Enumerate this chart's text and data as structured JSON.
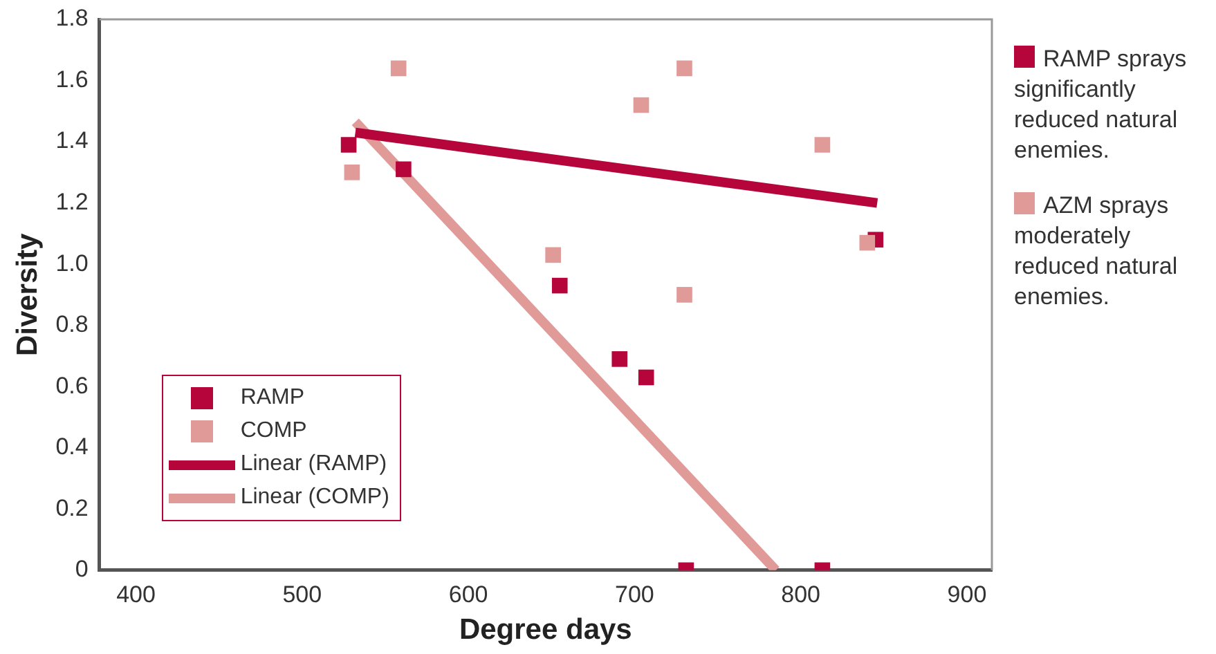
{
  "chart_data": {
    "type": "scatter",
    "xlabel": "Degree days",
    "ylabel": "Diversity",
    "xlim": [
      378,
      915
    ],
    "xticks": [
      400,
      500,
      600,
      700,
      800,
      900
    ],
    "ylim": [
      0,
      1.8
    ],
    "yticks": [
      0,
      0.2,
      0.4,
      0.6,
      0.8,
      {
        "value": 1,
        "label": "1.0"
      },
      1.2,
      1.4,
      1.6,
      1.8
    ],
    "grid": false,
    "legend": "bottom left",
    "line_style": "solid",
    "series": [
      {
        "name": "RAMP",
        "color": "#b5053a",
        "marker": "square",
        "x": [
          528,
          561,
          655,
          691,
          707,
          731,
          813,
          845
        ],
        "values": [
          1.39,
          1.31,
          0.93,
          0.69,
          0.63,
          0,
          0,
          1.08
        ]
      },
      {
        "name": "COMP",
        "color": "#e09a98",
        "marker": "square",
        "x": [
          530,
          558,
          651,
          704,
          730,
          730,
          813,
          840
        ],
        "values": [
          1.3,
          1.64,
          1.03,
          1.52,
          1.64,
          0.9,
          1.39,
          1.07
        ]
      },
      {
        "name": "Linear (RAMP)",
        "type": "line",
        "marker": "none",
        "color": "#b5053a",
        "x": [
          532,
          846
        ],
        "values": [
          1.43,
          1.2
        ]
      },
      {
        "name": "Linear (COMP)",
        "type": "line",
        "marker": "none",
        "color": "#e09a98",
        "x": [
          532,
          785
        ],
        "values": [
          1.465,
          0
        ]
      }
    ],
    "annotations": [
      "RAMP sprays significantly reduced natural enemies.",
      "AZM sprays moderately reduced natural enemies."
    ]
  }
}
